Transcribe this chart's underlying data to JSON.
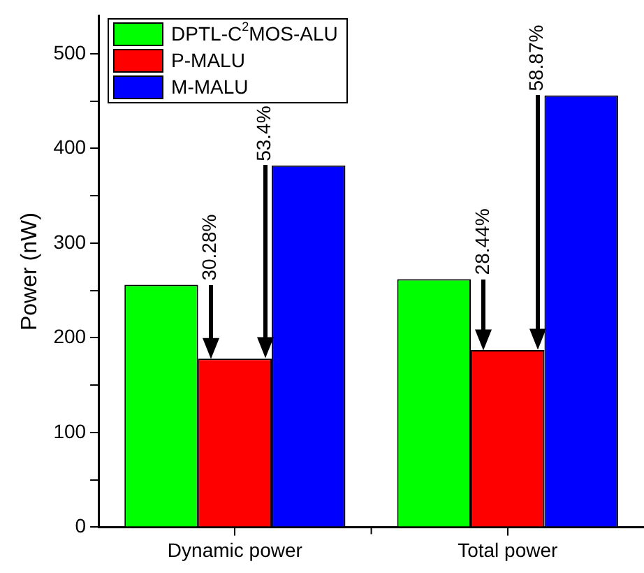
{
  "chart_data": {
    "type": "bar",
    "ylabel": "Power (nW)",
    "categories": [
      "Dynamic power",
      "Total power"
    ],
    "series": [
      {
        "name": "DPTL-C$^{2}$MOS-ALU",
        "color": "#00ff00",
        "values": [
          256,
          262
        ]
      },
      {
        "name": "P-MALU",
        "color": "#ff0000",
        "values": [
          178,
          187
        ]
      },
      {
        "name": "M-MALU",
        "color": "#0000ff",
        "values": [
          382,
          456
        ]
      }
    ],
    "ylim": [
      0,
      540
    ],
    "yticks": [
      0,
      {
        "value": 50,
        "label": null
      },
      100,
      {
        "value": 150,
        "label": null
      },
      200,
      {
        "value": 250,
        "label": null
      },
      300,
      {
        "value": 350,
        "label": null
      },
      400,
      {
        "value": 450,
        "label": null
      },
      500
    ],
    "annotations": [
      "30.28%",
      "53.4%",
      "28.44%",
      "58.87%"
    ],
    "grid": false,
    "legend": "top left"
  }
}
